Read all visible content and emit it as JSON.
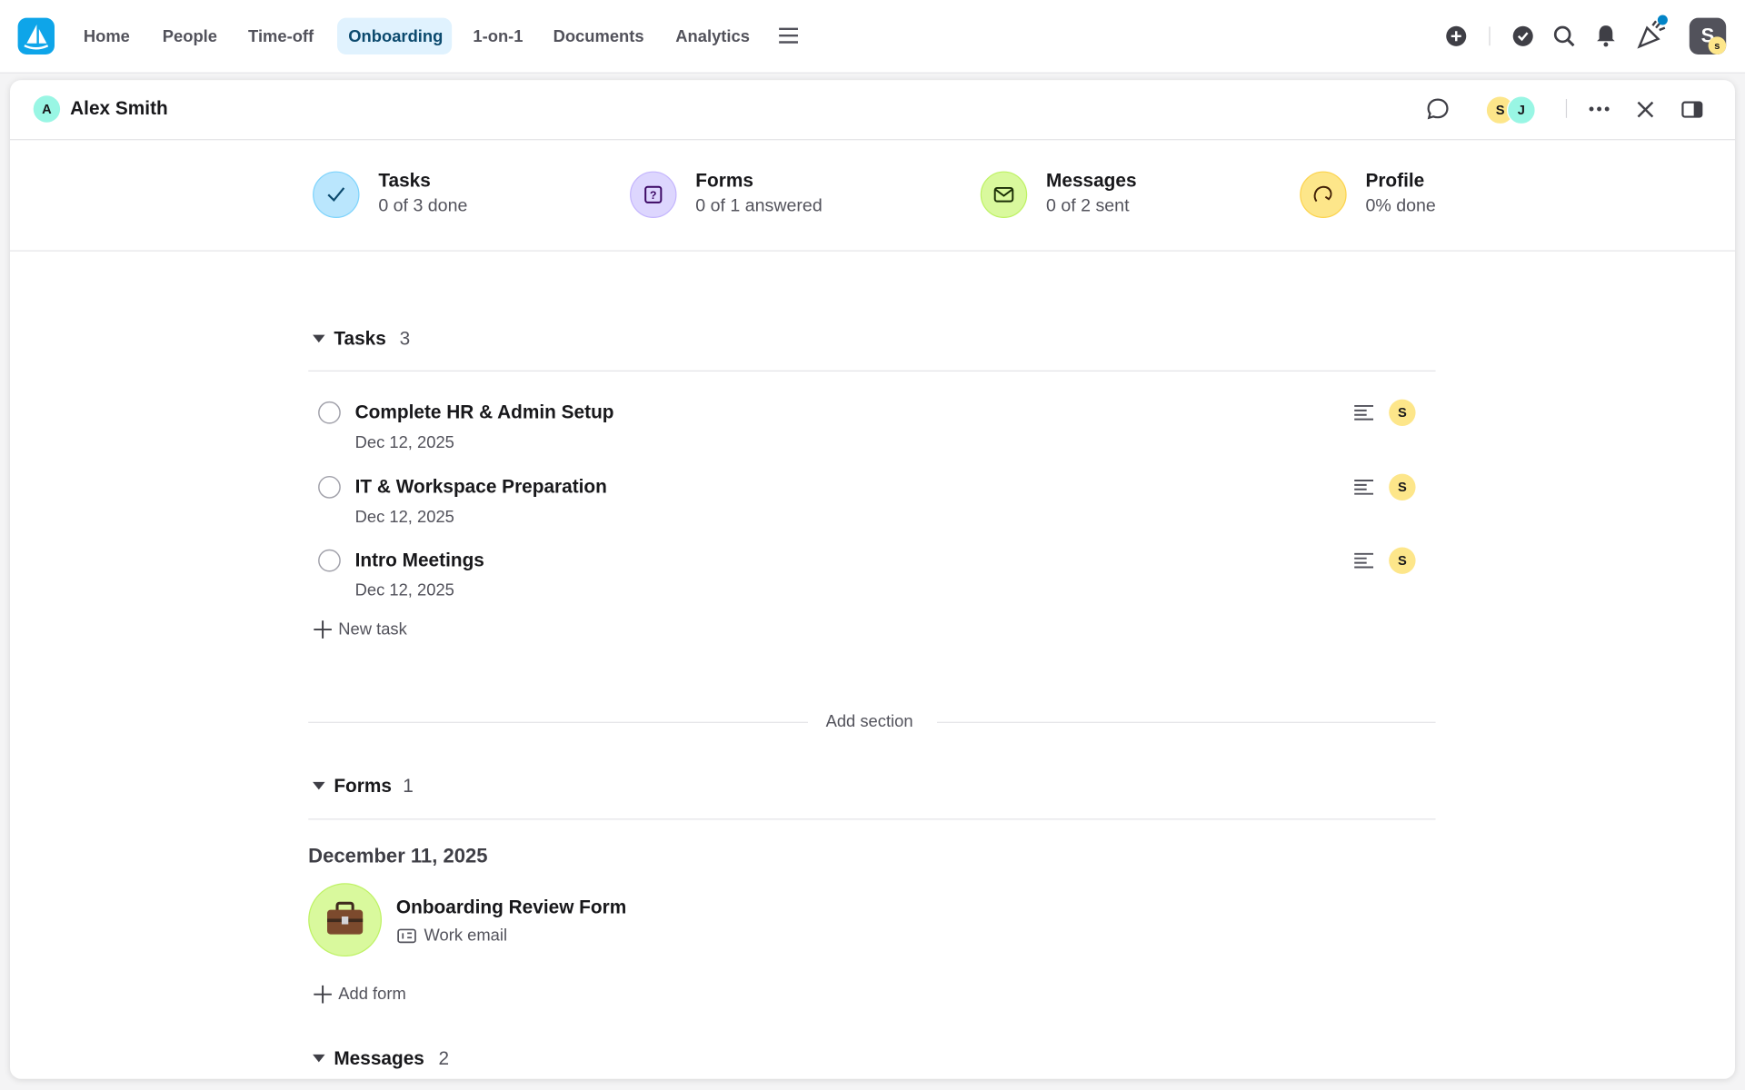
{
  "nav": {
    "items": [
      "Home",
      "People",
      "Time-off",
      "Onboarding",
      "1-on-1",
      "Documents",
      "Analytics"
    ],
    "active": "Onboarding",
    "avatar": "S",
    "avatar_badge": "s"
  },
  "panel": {
    "person_initial": "A",
    "person_name": "Alex Smith",
    "watchers": [
      "S",
      "J"
    ]
  },
  "summary": [
    {
      "title": "Tasks",
      "subtitle": "0 of 3 done"
    },
    {
      "title": "Forms",
      "subtitle": "0 of 1 answered"
    },
    {
      "title": "Messages",
      "subtitle": "0 of 2 sent"
    },
    {
      "title": "Profile",
      "subtitle": "0% done"
    }
  ],
  "tasks": {
    "title": "Tasks",
    "count": 3,
    "items": [
      {
        "title": "Complete HR & Admin Setup",
        "date": "Dec 12, 2025",
        "assignee": "S"
      },
      {
        "title": "IT & Workspace Preparation",
        "date": "Dec 12, 2025",
        "assignee": "S"
      },
      {
        "title": "Intro Meetings",
        "date": "Dec 12, 2025",
        "assignee": "S"
      }
    ],
    "add": "New task"
  },
  "add_section": "Add section",
  "forms": {
    "title": "Forms",
    "count": 1,
    "date": "December 11, 2025",
    "items": [
      {
        "title": "Onboarding Review Form",
        "field": "Work email"
      }
    ],
    "add": "Add form"
  },
  "messages": {
    "title": "Messages",
    "count": 2
  }
}
